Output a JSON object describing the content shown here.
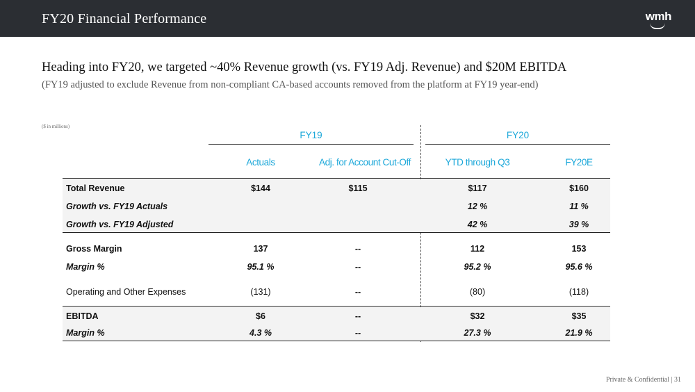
{
  "header": {
    "title": "FY20 Financial Performance",
    "logo_text": "wmh"
  },
  "headline": "Heading into FY20, we targeted ~40% Revenue growth (vs. FY19 Adj. Revenue) and $20M EBITDA",
  "subline": "(FY19 adjusted to exclude Revenue from non-compliant CA-based accounts removed from the platform at FY19 year-end)",
  "units_note": "($ in millions)",
  "table": {
    "group_headers": [
      "FY19",
      "FY20"
    ],
    "columns": [
      "Actuals",
      "Adj. for Account Cut-Off",
      "YTD through Q3",
      "FY20E"
    ],
    "rows": [
      {
        "label": "Total Revenue",
        "style": "bold",
        "values": [
          "$144",
          "$115",
          "$117",
          "$160"
        ]
      },
      {
        "label": "Growth vs. FY19 Actuals",
        "style": "bold-italic",
        "values": [
          "",
          "",
          "12 %",
          "11 %"
        ]
      },
      {
        "label": "Growth vs. FY19 Adjusted",
        "style": "bold-italic",
        "values": [
          "",
          "",
          "42 %",
          "39 %"
        ]
      },
      {
        "label": "Gross Margin",
        "style": "bold",
        "values": [
          "137",
          "--",
          "112",
          "153"
        ]
      },
      {
        "label": "Margin %",
        "style": "bold-italic",
        "values": [
          "95.1 %",
          "--",
          "95.2 %",
          "95.6 %"
        ]
      },
      {
        "label": "Operating and Other Expenses",
        "style": "normal",
        "values": [
          "(131)",
          "--",
          "(80)",
          "(118)"
        ]
      },
      {
        "label": "EBITDA",
        "style": "bold",
        "values": [
          "$6",
          "--",
          "$32",
          "$35"
        ]
      },
      {
        "label": "Margin %",
        "style": "bold-italic",
        "values": [
          "4.3 %",
          "--",
          "27.3 %",
          "21.9 %"
        ]
      }
    ]
  },
  "footer": "Private & Confidential  |  31"
}
